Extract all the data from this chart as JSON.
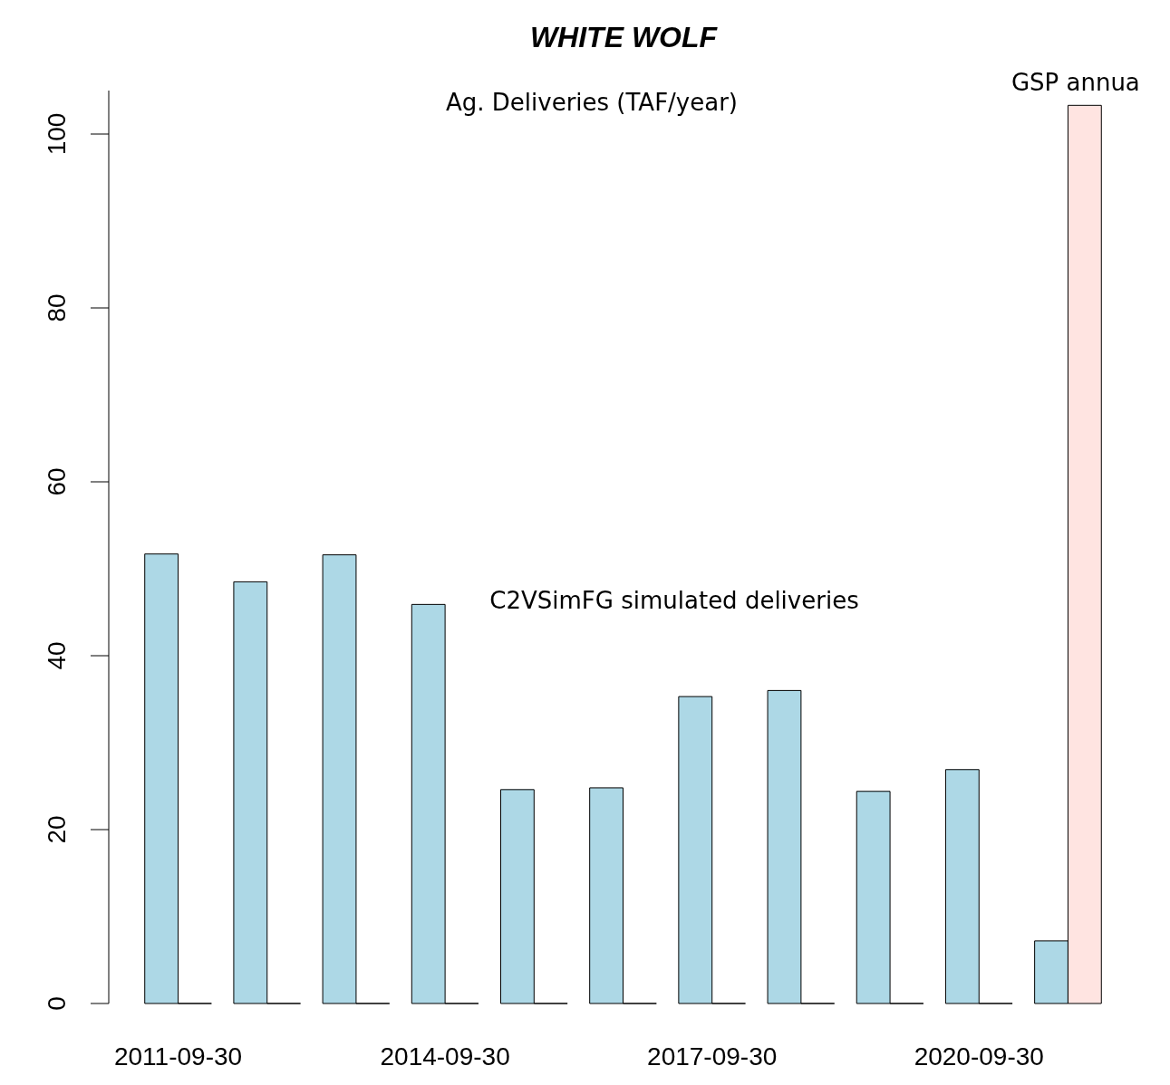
{
  "chart_data": {
    "type": "bar",
    "title": "WHITE WOLF",
    "subtitle": "Ag. Deliveries (TAF/year)",
    "categories": [
      "2011-09-30",
      null,
      null,
      "2014-09-30",
      null,
      null,
      "2017-09-30",
      null,
      null,
      "2020-09-30",
      null
    ],
    "series": [
      {
        "name": "C2VSimFG simulated deliveries",
        "color": "#add8e6",
        "values": [
          51.7,
          48.5,
          51.6,
          45.9,
          24.6,
          24.8,
          35.3,
          36.0,
          24.4,
          26.9,
          7.2
        ]
      },
      {
        "name": "GSP annua",
        "color": "#ffe4e1",
        "values": [
          0,
          0,
          0,
          0,
          0,
          0,
          0,
          0,
          0,
          0,
          103.3
        ]
      }
    ],
    "ylim": [
      0,
      105
    ],
    "yticks": [
      0,
      20,
      40,
      60,
      80,
      100
    ]
  }
}
